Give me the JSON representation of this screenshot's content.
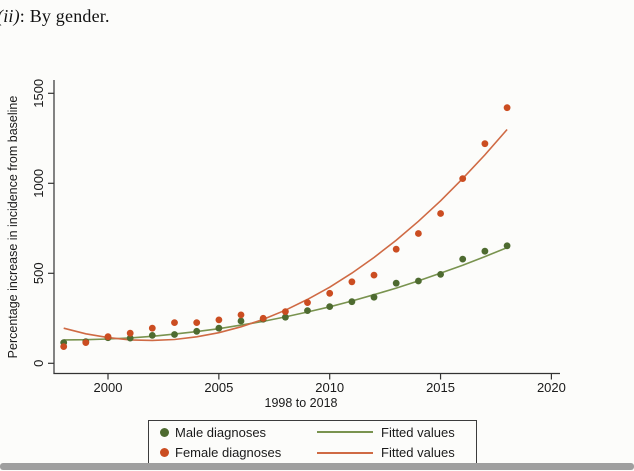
{
  "page": {
    "heading_prefix": "(ii)",
    "heading_rest": ": By gender."
  },
  "chart_data": {
    "type": "scatter",
    "title": "",
    "xlabel": "1998 to 2018",
    "ylabel": "Percentage increase in incidence from baseline",
    "x_ticks": [
      2000,
      2005,
      2010,
      2015,
      2020
    ],
    "y_ticks": [
      0,
      500,
      1000,
      1500
    ],
    "xlim": [
      1997.6,
      2020.4
    ],
    "ylim": [
      -50,
      1575
    ],
    "grid": false,
    "legend_position": "bottom",
    "x": [
      1998,
      1999,
      2000,
      2001,
      2002,
      2003,
      2004,
      2005,
      2006,
      2007,
      2008,
      2009,
      2010,
      2011,
      2012,
      2013,
      2014,
      2015,
      2016,
      2017,
      2018
    ],
    "series": [
      {
        "name": "Male diagnoses",
        "kind": "scatter",
        "color": "#4e6b30",
        "values": [
          115,
          120,
          142,
          140,
          155,
          160,
          178,
          195,
          235,
          245,
          256,
          293,
          315,
          342,
          367,
          445,
          457,
          494,
          579,
          623,
          653
        ]
      },
      {
        "name": "Female diagnoses",
        "kind": "scatter",
        "color": "#cb4d21",
        "values": [
          93,
          115,
          148,
          167,
          195,
          226,
          226,
          241,
          269,
          250,
          287,
          337,
          389,
          453,
          490,
          634,
          721,
          832,
          1026,
          1220,
          1420
        ]
      },
      {
        "name": "Fitted values",
        "kind": "line",
        "color": "#79934f",
        "values": [
          130,
          131,
          135,
          141,
          150,
          162,
          176,
          192,
          212,
          233,
          258,
          285,
          314,
          346,
          381,
          418,
          458,
          501,
          545,
          593,
          643
        ]
      },
      {
        "name": "Fitted values",
        "kind": "line",
        "color": "#cf6a44",
        "values": [
          195,
          164,
          143,
          130,
          127,
          132,
          147,
          170,
          203,
          244,
          295,
          355,
          423,
          501,
          588,
          684,
          789,
          903,
          1026,
          1158,
          1299
        ]
      }
    ],
    "legend": {
      "entries": [
        {
          "marker": "dot",
          "color": "#4e6b30",
          "label": "Male diagnoses"
        },
        {
          "marker": "line",
          "color": "#79934f",
          "label": "Fitted values"
        },
        {
          "marker": "dot",
          "color": "#cb4d21",
          "label": "Female diagnoses"
        },
        {
          "marker": "line",
          "color": "#cf6a44",
          "label": "Fitted values"
        }
      ]
    }
  }
}
